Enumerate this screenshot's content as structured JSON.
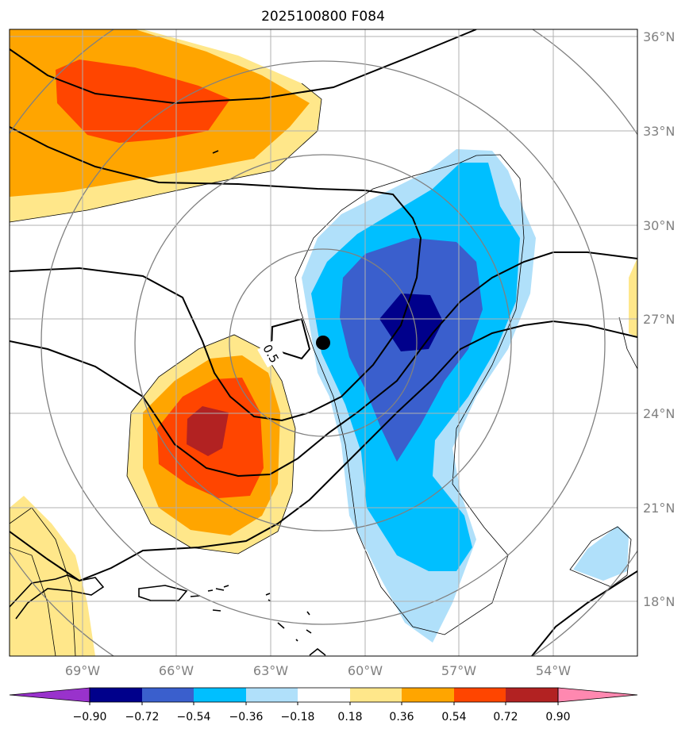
{
  "title": "2025100800 F084",
  "map": {
    "lon_labels": [
      "69°W",
      "66°W",
      "63°W",
      "60°W",
      "57°W",
      "54°W"
    ],
    "lat_labels": [
      "36°N",
      "33°N",
      "30°N",
      "27°N",
      "24°N",
      "21°N",
      "18°N"
    ],
    "contour_label": "0.5",
    "storm_center": {
      "lon": -61.3,
      "lat": 26.3
    },
    "gridlines": true
  },
  "colorbar": {
    "ticks": [
      "−0.90",
      "−0.72",
      "−0.54",
      "−0.36",
      "−0.18",
      "0.18",
      "0.36",
      "0.54",
      "0.72",
      "0.90"
    ],
    "colors": [
      "#9932cc",
      "#00008b",
      "#3a5fcd",
      "#00bfff",
      "#b0e0fa",
      "#ffffff",
      "#ffe78a",
      "#ffa500",
      "#ff4500",
      "#b22222",
      "#ff88b0"
    ]
  }
}
